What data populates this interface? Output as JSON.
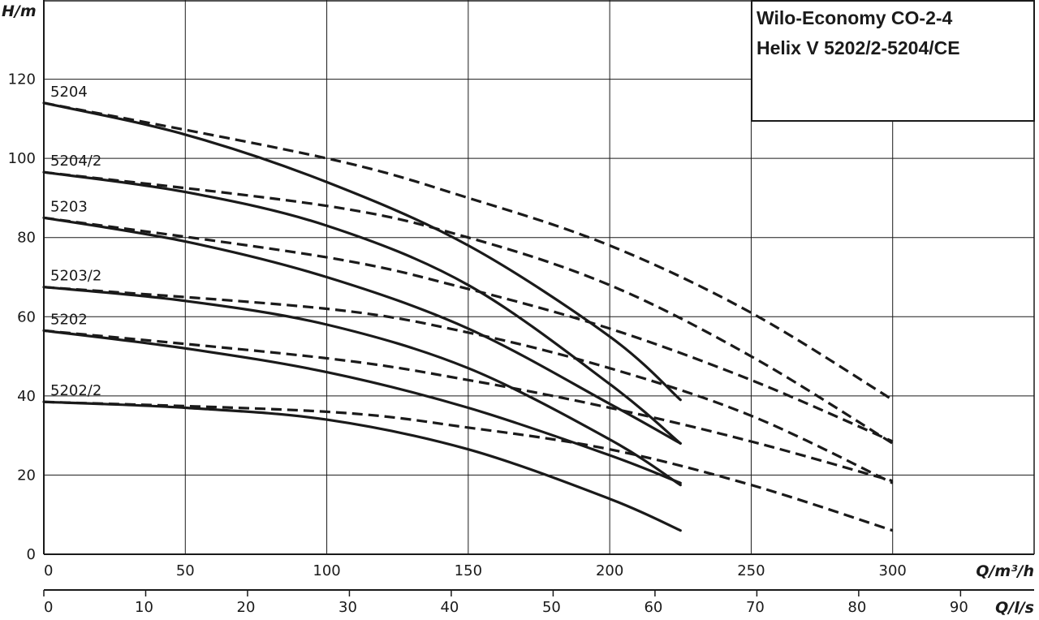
{
  "chart_data": {
    "type": "line",
    "title_lines": [
      "Wilo-Economy CO-2-4",
      "Helix V 5202/2-5204/CE"
    ],
    "ylabel": "H/m",
    "xlabel": "Q/m³/h",
    "x2label": "Q/l/s",
    "xlim": [
      0,
      350
    ],
    "ylim": [
      0,
      140
    ],
    "x_ticks": [
      0,
      50,
      100,
      150,
      200,
      250,
      300
    ],
    "y_ticks": [
      0,
      20,
      40,
      60,
      80,
      100,
      120
    ],
    "x2_ticks": [
      0,
      10,
      20,
      30,
      40,
      50,
      60,
      70,
      80,
      90
    ],
    "grid": true,
    "colors": {
      "line": "#1a1a1a",
      "grid": "#1a1a1a",
      "background": "#ffffff"
    },
    "series": [
      {
        "name": "5204",
        "solid": {
          "x": [
            0,
            50,
            100,
            150,
            200,
            225
          ],
          "y": [
            114,
            106,
            94,
            78,
            55,
            39
          ]
        },
        "dashed": {
          "x": [
            0,
            100,
            150,
            200,
            250,
            300
          ],
          "y": [
            114,
            100,
            90,
            78,
            61,
            39
          ]
        }
      },
      {
        "name": "5204/2",
        "solid": {
          "x": [
            0,
            50,
            100,
            150,
            200,
            225
          ],
          "y": [
            96.5,
            91.5,
            83,
            68,
            43,
            28
          ]
        },
        "dashed": {
          "x": [
            0,
            100,
            150,
            200,
            250,
            300
          ],
          "y": [
            96.5,
            88,
            80,
            68,
            50,
            28
          ]
        }
      },
      {
        "name": "5203",
        "solid": {
          "x": [
            0,
            50,
            100,
            150,
            200,
            225
          ],
          "y": [
            85,
            79,
            70,
            57,
            38,
            28
          ]
        },
        "dashed": {
          "x": [
            0,
            100,
            150,
            200,
            250,
            300
          ],
          "y": [
            85,
            75,
            67,
            57,
            44,
            28.5
          ]
        }
      },
      {
        "name": "5203/2",
        "solid": {
          "x": [
            0,
            50,
            100,
            150,
            200,
            225
          ],
          "y": [
            67.5,
            64,
            58,
            47,
            29,
            17.5
          ]
        },
        "dashed": {
          "x": [
            0,
            100,
            150,
            200,
            250,
            300
          ],
          "y": [
            67.5,
            62,
            56,
            47,
            35,
            18
          ]
        }
      },
      {
        "name": "5202",
        "solid": {
          "x": [
            0,
            50,
            100,
            150,
            200,
            225
          ],
          "y": [
            56.5,
            52,
            46,
            37,
            25,
            18
          ]
        },
        "dashed": {
          "x": [
            0,
            100,
            150,
            200,
            250,
            300
          ],
          "y": [
            56.5,
            49.5,
            44,
            37,
            28.5,
            18.5
          ]
        }
      },
      {
        "name": "5202/2",
        "solid": {
          "x": [
            0,
            50,
            100,
            150,
            200,
            225
          ],
          "y": [
            38.5,
            37,
            34,
            26.5,
            14,
            6
          ]
        },
        "dashed": {
          "x": [
            0,
            100,
            150,
            200,
            250,
            300
          ],
          "y": [
            38.5,
            36,
            32,
            26.5,
            17.5,
            6
          ]
        }
      }
    ]
  }
}
